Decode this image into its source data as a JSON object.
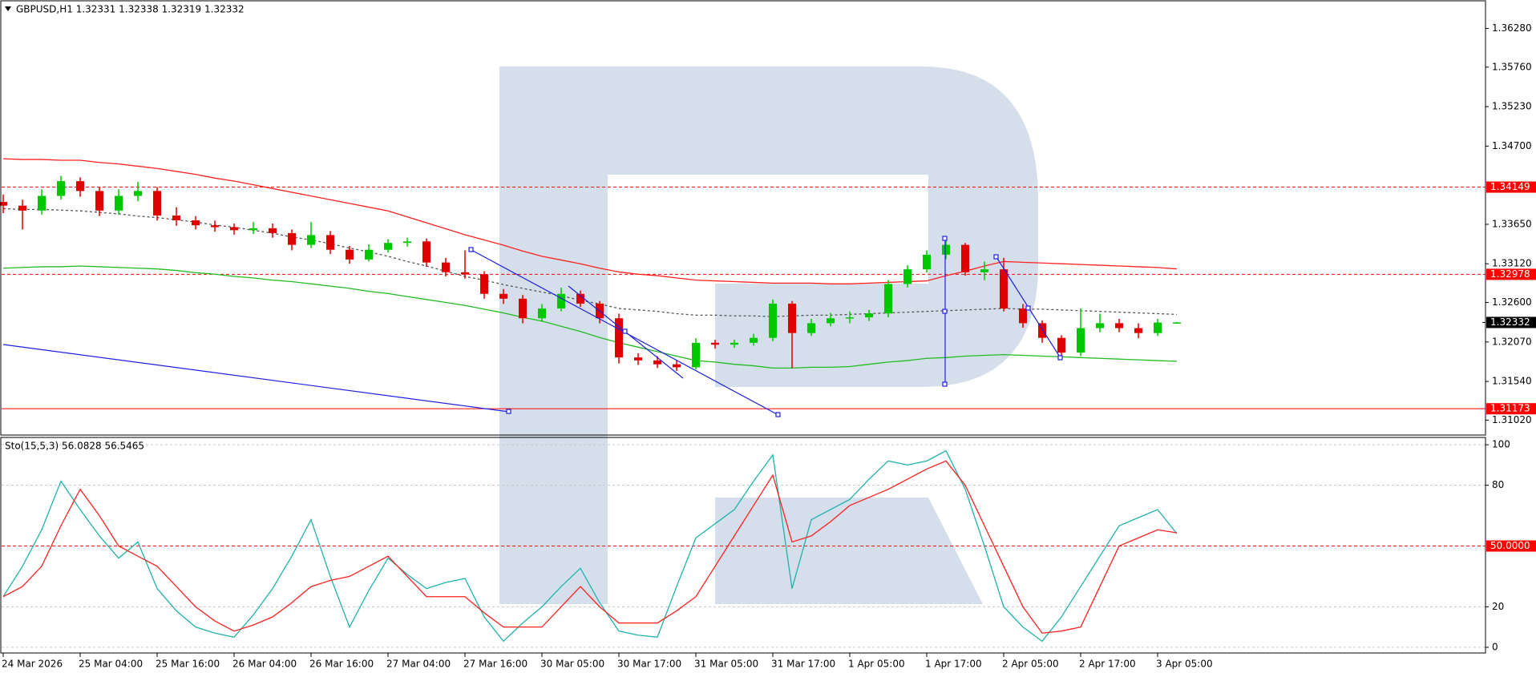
{
  "chart_data": [
    {
      "type": "candlestick",
      "title": "GBPUSD,H1  1.32331 1.32338 1.32319 1.32332",
      "categories": [
        "24 Mar 2026",
        null,
        null,
        null,
        "25 Mar 04:00",
        null,
        null,
        null,
        "25 Mar 16:00",
        null,
        null,
        null,
        "26 Mar 04:00",
        null,
        null,
        null,
        "26 Mar 16:00",
        null,
        null,
        null,
        "27 Mar 04:00",
        null,
        null,
        null,
        "27 Mar 16:00",
        null,
        null,
        null,
        "30 Mar 05:00",
        null,
        null,
        null,
        "30 Mar 17:00",
        null,
        null,
        null,
        "31 Mar 05:00",
        null,
        null,
        null,
        "31 Mar 17:00",
        null,
        null,
        null,
        "1 Apr 05:00",
        null,
        null,
        null,
        "1 Apr 17:00",
        null,
        null,
        null,
        "2 Apr 05:00",
        null,
        null,
        null,
        "2 Apr 17:00",
        null,
        null,
        null,
        "3 Apr 05:00",
        null
      ],
      "open": [
        1.3395,
        1.339,
        1.33834,
        1.34031,
        1.34229,
        1.34097,
        1.33834,
        1.34031,
        1.34097,
        1.33768,
        1.33703,
        1.33637,
        1.33611,
        1.33571,
        1.33597,
        1.33532,
        1.33374,
        1.33505,
        1.33308,
        1.33177,
        1.33308,
        1.334,
        1.3342,
        1.33137,
        1.33006,
        1.32979,
        1.32716,
        1.32651,
        1.32388,
        1.32519,
        1.32716,
        1.32585,
        1.32388,
        1.31862,
        1.31822,
        1.3177,
        1.3173,
        1.32059,
        1.32033,
        1.32059,
        1.32125,
        1.32585,
        1.3219,
        1.32322,
        1.32388,
        1.324,
        1.32453,
        1.32848,
        1.33045,
        1.33242,
        1.33374,
        1.33006,
        1.33045,
        1.32519,
        1.32322,
        1.32125,
        1.31927,
        1.32256,
        1.32322,
        1.32256,
        1.3219,
        1.32331
      ],
      "high": [
        1.3405,
        1.3398,
        1.3412,
        1.343,
        1.3428,
        1.3415,
        1.3412,
        1.3422,
        1.3415,
        1.3388,
        1.3376,
        1.337,
        1.3366,
        1.3368,
        1.3366,
        1.3358,
        1.3368,
        1.3356,
        1.3336,
        1.3338,
        1.3345,
        1.3347,
        1.3346,
        1.332,
        1.333,
        1.3302,
        1.3278,
        1.327,
        1.3258,
        1.328,
        1.3276,
        1.3262,
        1.3245,
        1.3192,
        1.3188,
        1.3182,
        1.3212,
        1.321,
        1.321,
        1.3218,
        1.3264,
        1.3262,
        1.3238,
        1.3246,
        1.3248,
        1.325,
        1.329,
        1.331,
        1.333,
        1.3345,
        1.334,
        1.3315,
        1.332,
        1.3258,
        1.3236,
        1.3216,
        1.3252,
        1.3245,
        1.3238,
        1.3232,
        1.3238,
        1.32338
      ],
      "low": [
        1.338,
        1.3358,
        1.3378,
        1.3398,
        1.3402,
        1.3376,
        1.3378,
        1.3396,
        1.337,
        1.3363,
        1.3358,
        1.3355,
        1.3351,
        1.3352,
        1.3347,
        1.333,
        1.3333,
        1.3325,
        1.3312,
        1.3315,
        1.3327,
        1.3335,
        1.3308,
        1.3295,
        1.3292,
        1.3265,
        1.3258,
        1.3232,
        1.3234,
        1.3248,
        1.3254,
        1.3232,
        1.3178,
        1.3176,
        1.3172,
        1.3168,
        1.317,
        1.3198,
        1.3199,
        1.3202,
        1.3208,
        1.3172,
        1.3215,
        1.3228,
        1.3232,
        1.3235,
        1.324,
        1.328,
        1.33,
        1.3318,
        1.3296,
        1.329,
        1.3248,
        1.3226,
        1.3206,
        1.3185,
        1.3188,
        1.322,
        1.322,
        1.3212,
        1.3215,
        1.32319
      ],
      "close": [
        1.339,
        1.33834,
        1.34031,
        1.34229,
        1.34097,
        1.33834,
        1.34031,
        1.34097,
        1.33768,
        1.33703,
        1.33637,
        1.33611,
        1.33571,
        1.33597,
        1.33532,
        1.33374,
        1.33505,
        1.33308,
        1.33177,
        1.33308,
        1.334,
        1.3342,
        1.33137,
        1.33006,
        1.32979,
        1.32716,
        1.32651,
        1.32388,
        1.32519,
        1.32716,
        1.32585,
        1.32388,
        1.31862,
        1.31822,
        1.3177,
        1.3173,
        1.32059,
        1.32033,
        1.32059,
        1.32125,
        1.32585,
        1.3219,
        1.32322,
        1.32388,
        1.324,
        1.32453,
        1.32848,
        1.33045,
        1.33242,
        1.33374,
        1.33006,
        1.33045,
        1.32519,
        1.32322,
        1.32125,
        1.31927,
        1.32256,
        1.32322,
        1.32256,
        1.3219,
        1.32331,
        1.32332
      ],
      "up_color": "#00c800",
      "down_color": "#e00000",
      "lines": [
        {
          "color": "#ff2020",
          "style": "solid",
          "values": [
            1.3453,
            1.3452,
            1.3452,
            1.3451,
            1.3451,
            1.3448,
            1.3446,
            1.3443,
            1.344,
            1.3436,
            1.3432,
            1.3427,
            1.3423,
            1.3418,
            1.3413,
            1.3408,
            1.3403,
            1.3398,
            1.3393,
            1.3388,
            1.3383,
            1.3375,
            1.3367,
            1.3359,
            1.3351,
            1.3344,
            1.3337,
            1.3329,
            1.3322,
            1.3317,
            1.3312,
            1.3306,
            1.3301,
            1.3298,
            1.3296,
            1.3293,
            1.329,
            1.3289,
            1.3288,
            1.3287,
            1.3286,
            1.3286,
            1.3286,
            1.3285,
            1.3285,
            1.3286,
            1.3287,
            1.3288,
            1.3289,
            1.3296,
            1.3302,
            1.3309,
            1.3315,
            1.3314,
            1.3313,
            1.3312,
            1.3311,
            1.331,
            1.3309,
            1.3308,
            1.3307,
            1.3305
          ]
        },
        {
          "color": "#22bb22",
          "style": "solid",
          "values": [
            1.3306,
            1.3307,
            1.3308,
            1.3308,
            1.3309,
            1.3308,
            1.3307,
            1.3306,
            1.3305,
            1.3303,
            1.33,
            1.3298,
            1.3295,
            1.3293,
            1.329,
            1.3288,
            1.3285,
            1.3282,
            1.3279,
            1.3275,
            1.3272,
            1.3268,
            1.3264,
            1.326,
            1.3256,
            1.3251,
            1.3246,
            1.324,
            1.3235,
            1.3228,
            1.3221,
            1.3213,
            1.3206,
            1.32,
            1.3194,
            1.3188,
            1.3182,
            1.318,
            1.3177,
            1.3175,
            1.3172,
            1.3172,
            1.3173,
            1.3173,
            1.3174,
            1.3177,
            1.318,
            1.3182,
            1.3185,
            1.3186,
            1.3188,
            1.3189,
            1.319,
            1.3189,
            1.3188,
            1.3187,
            1.3186,
            1.3185,
            1.3184,
            1.3183,
            1.3182,
            1.3181
          ]
        },
        {
          "color": "#555555",
          "style": "dashed",
          "values": [
            1.3386,
            1.3385,
            1.3385,
            1.3384,
            1.3383,
            1.3381,
            1.3379,
            1.3376,
            1.3374,
            1.3371,
            1.3368,
            1.3364,
            1.3361,
            1.3357,
            1.3353,
            1.3348,
            1.3344,
            1.3339,
            1.3333,
            1.3328,
            1.3322,
            1.3315,
            1.3309,
            1.3302,
            1.3295,
            1.329,
            1.3284,
            1.3279,
            1.3274,
            1.3269,
            1.3263,
            1.3258,
            1.3252,
            1.325,
            1.3248,
            1.3245,
            1.3243,
            1.3243,
            1.3242,
            1.3242,
            1.3241,
            1.3242,
            1.3243,
            1.3243,
            1.3244,
            1.3245,
            1.3246,
            1.3247,
            1.3248,
            1.3249,
            1.325,
            1.3251,
            1.3252,
            1.3251,
            1.3251,
            1.325,
            1.3249,
            1.3248,
            1.3247,
            1.3246,
            1.3245,
            1.3244
          ]
        }
      ],
      "levels": [
        {
          "value": 1.34149,
          "color": "#ff0000",
          "style": "dashed"
        },
        {
          "value": 1.32978,
          "color": "#ff0000",
          "style": "dashed"
        },
        {
          "value": 1.31173,
          "color": "#ff0000",
          "style": "solid"
        }
      ],
      "current": 1.32332,
      "ylim": [
        1.3082,
        1.3664
      ],
      "yticks": [
        {
          "value": 1.3628,
          "label": "1.36280"
        },
        {
          "value": 1.3576,
          "label": "1.35760"
        },
        {
          "value": 1.3523,
          "label": "1.35230"
        },
        {
          "value": 1.347,
          "label": "1.34700"
        },
        {
          "value": 1.3365,
          "label": "1.33650"
        },
        {
          "value": 1.3312,
          "label": "1.33120"
        },
        {
          "value": 1.326,
          "label": "1.32600"
        },
        {
          "value": 1.3207,
          "label": "1.32070"
        },
        {
          "value": 1.3154,
          "label": "1.31540"
        },
        {
          "value": 1.3102,
          "label": "1.31020"
        }
      ]
    },
    {
      "type": "line",
      "title": "Sto(15,5,3) 56.0828 56.5465",
      "series": [
        {
          "color": "#20b2aa",
          "values": [
            25,
            40,
            58,
            82,
            68,
            55,
            44,
            52,
            29,
            18,
            10,
            7,
            5,
            16,
            29,
            45,
            63,
            35,
            10,
            28,
            44,
            36,
            29,
            32,
            34,
            15,
            3,
            12,
            20,
            30,
            39,
            22,
            8,
            6,
            5,
            30,
            54,
            61,
            68,
            82,
            95,
            29,
            63,
            68,
            73,
            83,
            92,
            90,
            92,
            97,
            78,
            50,
            20,
            10,
            3,
            15,
            30,
            45,
            60,
            64,
            68,
            56.0828
          ]
        },
        {
          "color": "#ff2020",
          "values": [
            25,
            30,
            40,
            60,
            78,
            65,
            50,
            45,
            40,
            30,
            20,
            13,
            8,
            11,
            15,
            22,
            30,
            33,
            35,
            40,
            45,
            35,
            25,
            25,
            25,
            17,
            10,
            10,
            10,
            20,
            30,
            20,
            12,
            12,
            12,
            18,
            25,
            40,
            55,
            70,
            85,
            52,
            55,
            62,
            70,
            74,
            78,
            83,
            88,
            92,
            80,
            60,
            40,
            20,
            7,
            8,
            10,
            30,
            50,
            54,
            58,
            56.5465
          ]
        }
      ],
      "levels": [
        {
          "value": 50,
          "label": "50.0000",
          "color": "#ff0000"
        }
      ],
      "ylim": [
        -2.8,
        103.6
      ],
      "yticks": [
        0,
        20,
        80,
        100
      ],
      "grid": true
    }
  ]
}
